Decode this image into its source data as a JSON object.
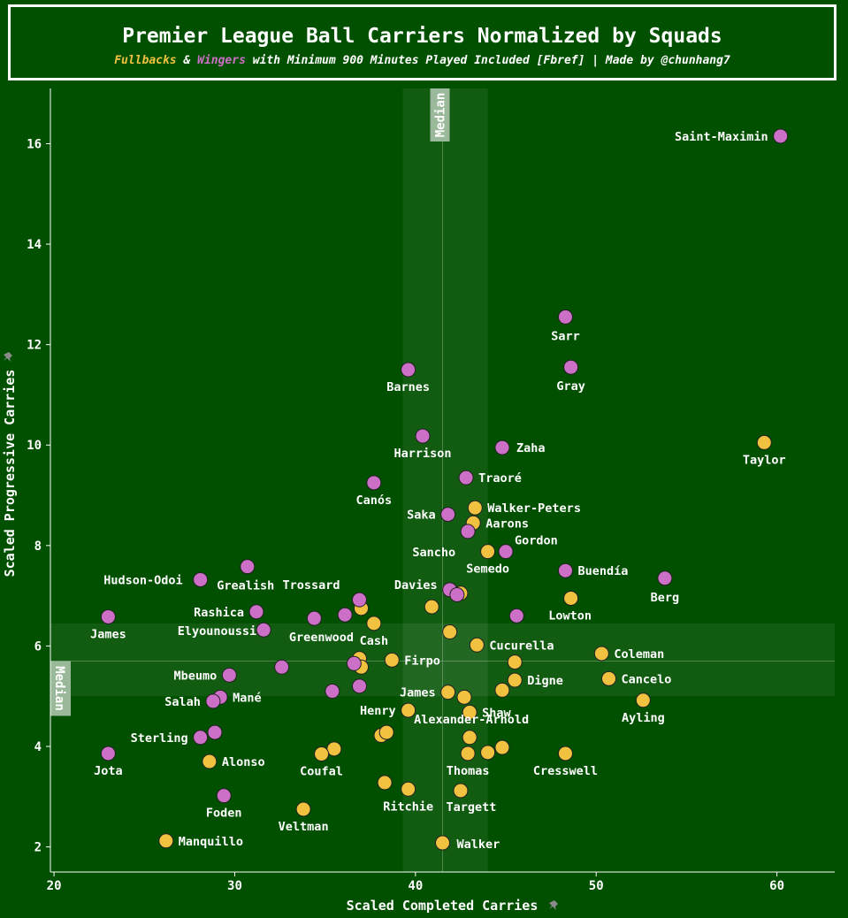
{
  "header": {
    "title": "Premier League Ball Carriers Normalized by Squads",
    "subtitle_part1": "Fullbacks",
    "subtitle_part2": " & ",
    "subtitle_part3": "Wingers",
    "subtitle_part4": " with Minimum 900 Minutes Played Included [Fbref] | Made by @chunhang7"
  },
  "colors": {
    "background": "#005000",
    "fullback": "#f0c23f",
    "winger": "#cc6fc6",
    "median_band": "#1a6a1a"
  },
  "chart_data": {
    "type": "scatter",
    "xlabel": "Scaled Completed Carries",
    "ylabel": "Scaled Progressive Carries",
    "xlim": [
      19.8,
      63.2
    ],
    "ylim": [
      1.5,
      17.1
    ],
    "xticks": [
      20,
      30,
      40,
      50,
      60
    ],
    "yticks": [
      2,
      4,
      6,
      8,
      10,
      12,
      14,
      16
    ],
    "median_label": "Median",
    "median_x": 41.5,
    "median_y": 5.7,
    "median_x_band": [
      39.3,
      44.0
    ],
    "median_y_band": [
      5.0,
      6.45
    ],
    "series": [
      {
        "name": "Fullbacks",
        "color": "#f0c23f",
        "points": [
          {
            "x": 59.3,
            "y": 10.05,
            "label": "Taylor"
          },
          {
            "x": 43.3,
            "y": 8.75,
            "label": "Walker-Peters"
          },
          {
            "x": 43.2,
            "y": 8.45,
            "label": "Aarons"
          },
          {
            "x": 44.0,
            "y": 7.88,
            "label": "Semedo"
          },
          {
            "x": 48.6,
            "y": 6.95,
            "label": "Lowton"
          },
          {
            "x": 42.5,
            "y": 7.05,
            "label": ""
          },
          {
            "x": 40.9,
            "y": 6.78,
            "label": ""
          },
          {
            "x": 37.0,
            "y": 6.75,
            "label": ""
          },
          {
            "x": 37.7,
            "y": 6.45,
            "label": "Cash"
          },
          {
            "x": 41.9,
            "y": 6.28,
            "label": ""
          },
          {
            "x": 43.4,
            "y": 6.02,
            "label": "Cucurella"
          },
          {
            "x": 36.9,
            "y": 5.75,
            "label": ""
          },
          {
            "x": 38.7,
            "y": 5.72,
            "label": "Firpo"
          },
          {
            "x": 37.0,
            "y": 5.58,
            "label": ""
          },
          {
            "x": 45.5,
            "y": 5.68,
            "label": ""
          },
          {
            "x": 50.3,
            "y": 5.85,
            "label": "Coleman"
          },
          {
            "x": 50.7,
            "y": 5.35,
            "label": "Cancelo"
          },
          {
            "x": 45.5,
            "y": 5.32,
            "label": "Digne"
          },
          {
            "x": 44.8,
            "y": 5.12,
            "label": ""
          },
          {
            "x": 41.8,
            "y": 5.08,
            "label": "James"
          },
          {
            "x": 42.7,
            "y": 4.98,
            "label": ""
          },
          {
            "x": 52.6,
            "y": 4.92,
            "label": "Ayling"
          },
          {
            "x": 39.6,
            "y": 4.72,
            "label": "Henry"
          },
          {
            "x": 43.0,
            "y": 4.68,
            "label": "Shaw"
          },
          {
            "x": 38.1,
            "y": 4.22,
            "label": ""
          },
          {
            "x": 38.4,
            "y": 4.28,
            "label": ""
          },
          {
            "x": 43.0,
            "y": 4.18,
            "label": "Alexander-Arnold"
          },
          {
            "x": 44.8,
            "y": 3.98,
            "label": ""
          },
          {
            "x": 44.0,
            "y": 3.88,
            "label": ""
          },
          {
            "x": 42.9,
            "y": 3.86,
            "label": "Thomas"
          },
          {
            "x": 48.3,
            "y": 3.86,
            "label": "Cresswell"
          },
          {
            "x": 35.5,
            "y": 3.95,
            "label": ""
          },
          {
            "x": 34.8,
            "y": 3.85,
            "label": "Coufal"
          },
          {
            "x": 28.6,
            "y": 3.7,
            "label": "Alonso"
          },
          {
            "x": 38.3,
            "y": 3.28,
            "label": ""
          },
          {
            "x": 39.6,
            "y": 3.15,
            "label": "Ritchie"
          },
          {
            "x": 42.5,
            "y": 3.12,
            "label": "Targett"
          },
          {
            "x": 33.8,
            "y": 2.75,
            "label": "Veltman"
          },
          {
            "x": 26.2,
            "y": 2.12,
            "label": "Manquillo"
          },
          {
            "x": 41.5,
            "y": 2.08,
            "label": "Walker"
          }
        ]
      },
      {
        "name": "Wingers",
        "color": "#cc6fc6",
        "points": [
          {
            "x": 60.2,
            "y": 16.15,
            "label": "Saint-Maximin"
          },
          {
            "x": 48.3,
            "y": 12.55,
            "label": "Sarr"
          },
          {
            "x": 48.6,
            "y": 11.55,
            "label": "Gray"
          },
          {
            "x": 39.6,
            "y": 11.5,
            "label": "Barnes"
          },
          {
            "x": 40.4,
            "y": 10.18,
            "label": "Harrison"
          },
          {
            "x": 44.8,
            "y": 9.95,
            "label": "Zaha"
          },
          {
            "x": 42.8,
            "y": 9.35,
            "label": "Traoré"
          },
          {
            "x": 37.7,
            "y": 9.25,
            "label": "Canós"
          },
          {
            "x": 41.8,
            "y": 8.62,
            "label": "Saka"
          },
          {
            "x": 42.9,
            "y": 8.28,
            "label": "Sancho"
          },
          {
            "x": 45.0,
            "y": 7.88,
            "label": "Gordon"
          },
          {
            "x": 48.3,
            "y": 7.5,
            "label": "Buendía"
          },
          {
            "x": 53.8,
            "y": 7.35,
            "label": "Berg"
          },
          {
            "x": 30.7,
            "y": 7.58,
            "label": "Grealish"
          },
          {
            "x": 28.1,
            "y": 7.32,
            "label": "Hudson-Odoi"
          },
          {
            "x": 41.9,
            "y": 7.12,
            "label": "Davies"
          },
          {
            "x": 42.3,
            "y": 7.02,
            "label": ""
          },
          {
            "x": 36.9,
            "y": 6.92,
            "label": "Trossard"
          },
          {
            "x": 31.2,
            "y": 6.68,
            "label": "Rashica"
          },
          {
            "x": 36.1,
            "y": 6.62,
            "label": ""
          },
          {
            "x": 34.4,
            "y": 6.55,
            "label": "Greenwood"
          },
          {
            "x": 45.6,
            "y": 6.6,
            "label": ""
          },
          {
            "x": 23.0,
            "y": 6.58,
            "label": "James"
          },
          {
            "x": 31.6,
            "y": 6.32,
            "label": "Elyounoussi"
          },
          {
            "x": 32.6,
            "y": 5.58,
            "label": ""
          },
          {
            "x": 36.6,
            "y": 5.65,
            "label": ""
          },
          {
            "x": 29.7,
            "y": 5.42,
            "label": "Mbeumo"
          },
          {
            "x": 36.9,
            "y": 5.2,
            "label": ""
          },
          {
            "x": 35.4,
            "y": 5.1,
            "label": ""
          },
          {
            "x": 29.2,
            "y": 4.98,
            "label": "Mané"
          },
          {
            "x": 28.8,
            "y": 4.9,
            "label": "Salah"
          },
          {
            "x": 28.9,
            "y": 4.28,
            "label": ""
          },
          {
            "x": 28.1,
            "y": 4.18,
            "label": "Sterling"
          },
          {
            "x": 23.0,
            "y": 3.86,
            "label": "Jota"
          },
          {
            "x": 29.4,
            "y": 3.02,
            "label": "Foden"
          }
        ]
      }
    ]
  }
}
